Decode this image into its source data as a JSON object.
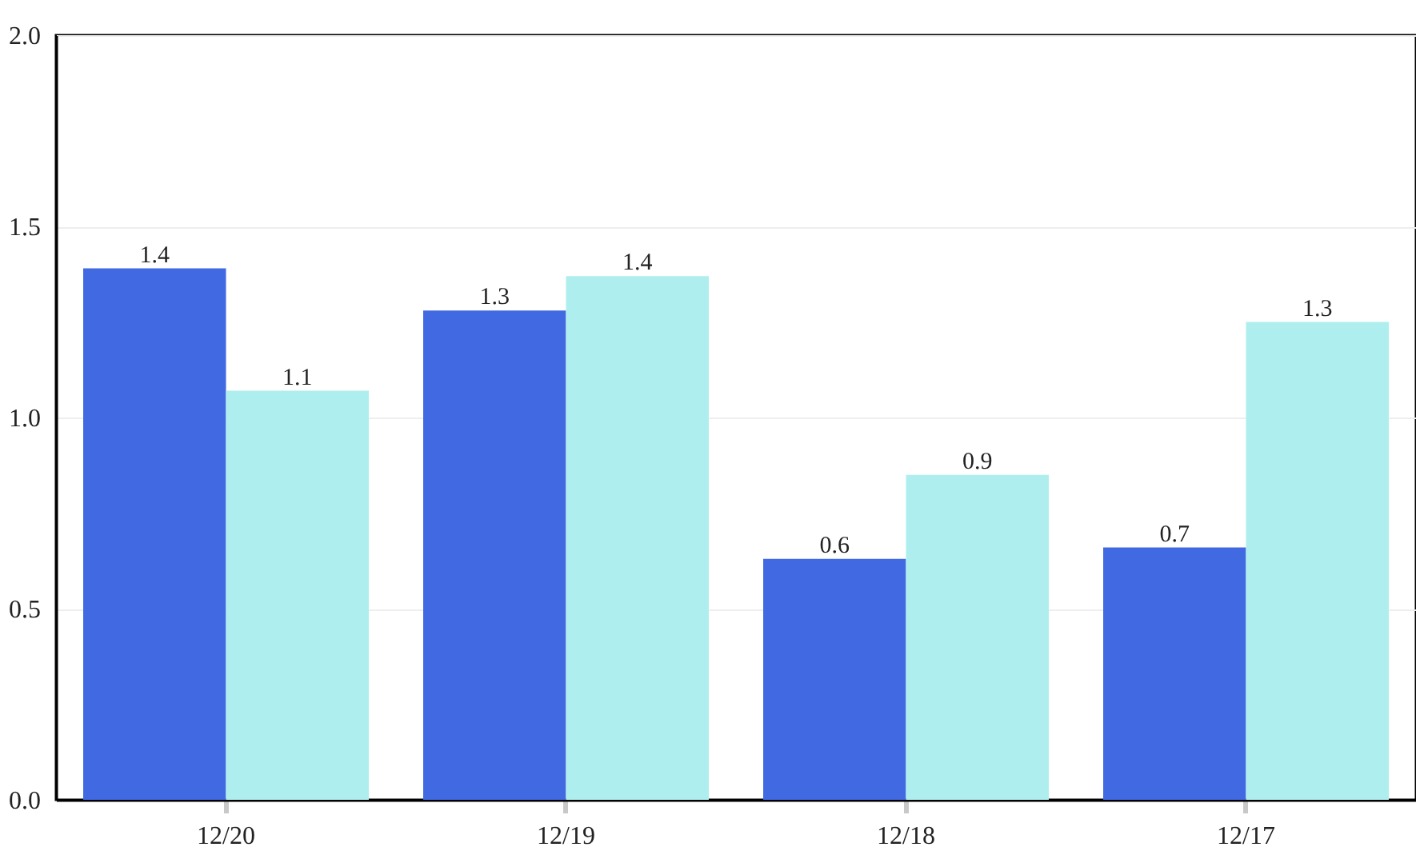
{
  "chart_data": {
    "type": "bar",
    "categories": [
      "12/20",
      "12/19",
      "12/18",
      "12/17"
    ],
    "series": [
      {
        "color": "#4169e1",
        "values": [
          1.39,
          1.28,
          0.63,
          0.66
        ],
        "value_labels": [
          "1.4",
          "1.3",
          "0.6",
          "0.7"
        ]
      },
      {
        "color": "#afeeee",
        "values": [
          1.07,
          1.37,
          0.85,
          1.25
        ],
        "value_labels": [
          "1.1",
          "1.4",
          "0.9",
          "1.3"
        ]
      }
    ],
    "ylim": [
      0,
      2.0
    ],
    "yticks": [
      {
        "value": 0,
        "label": "0.0"
      },
      {
        "value": 0.5,
        "label": "0.5"
      },
      {
        "value": 1.0,
        "label": "1.0"
      },
      {
        "value": 1.5,
        "label": "1.5"
      },
      {
        "value": 2.0,
        "label": "2.0"
      }
    ],
    "grid": "y",
    "legend": false
  }
}
